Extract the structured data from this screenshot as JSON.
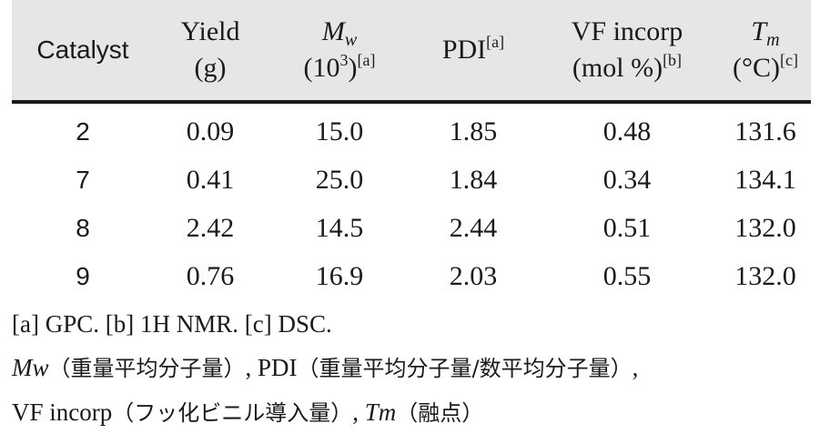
{
  "table": {
    "headers": {
      "catalyst": "Catalyst",
      "yield_line1": "Yield",
      "yield_line2": "(g)",
      "mw_symbol": "M",
      "mw_sub": "w",
      "mw_unit_open": "(10",
      "mw_unit_exp": "3",
      "mw_unit_close": ")",
      "mw_note": "[a]",
      "pdi": "PDI",
      "pdi_note": "[a]",
      "vf_line1": "VF incorp",
      "vf_line2": "(mol %)",
      "vf_note": "[b]",
      "tm_symbol": "T",
      "tm_sub": "m",
      "tm_unit": "(°C)",
      "tm_note": "[c]"
    },
    "rows": [
      {
        "catalyst": "2",
        "yield": "0.09",
        "mw": "15.0",
        "pdi": "1.85",
        "vf": "0.48",
        "tm": "131.6"
      },
      {
        "catalyst": "7",
        "yield": "0.41",
        "mw": "25.0",
        "pdi": "1.84",
        "vf": "0.34",
        "tm": "134.1"
      },
      {
        "catalyst": "8",
        "yield": "2.42",
        "mw": "14.5",
        "pdi": "2.44",
        "vf": "0.51",
        "tm": "132.0"
      },
      {
        "catalyst": "9",
        "yield": "0.76",
        "mw": "16.9",
        "pdi": "2.03",
        "vf": "0.55",
        "tm": "132.0"
      }
    ]
  },
  "footnotes": {
    "line1": "[a] GPC. [b] 1H NMR. [c] DSC.",
    "line2_mw": "Mw",
    "line2_mw_def": "（重量平均分子量）",
    "line2_sep": ", PDI",
    "line2_pdi_def": "（重量平均分子量/数平均分子量）",
    "line2_end": ",",
    "line3_vf": "VF incorp",
    "line3_vf_def": "（フッ化ビニル導入量）",
    "line3_sep": ", ",
    "line3_tm": "Tm",
    "line3_tm_def": "（融点）"
  },
  "colors": {
    "header_bg": "#e6e6e6",
    "rule": "#1a1a1a",
    "text": "#1a1a1a"
  }
}
